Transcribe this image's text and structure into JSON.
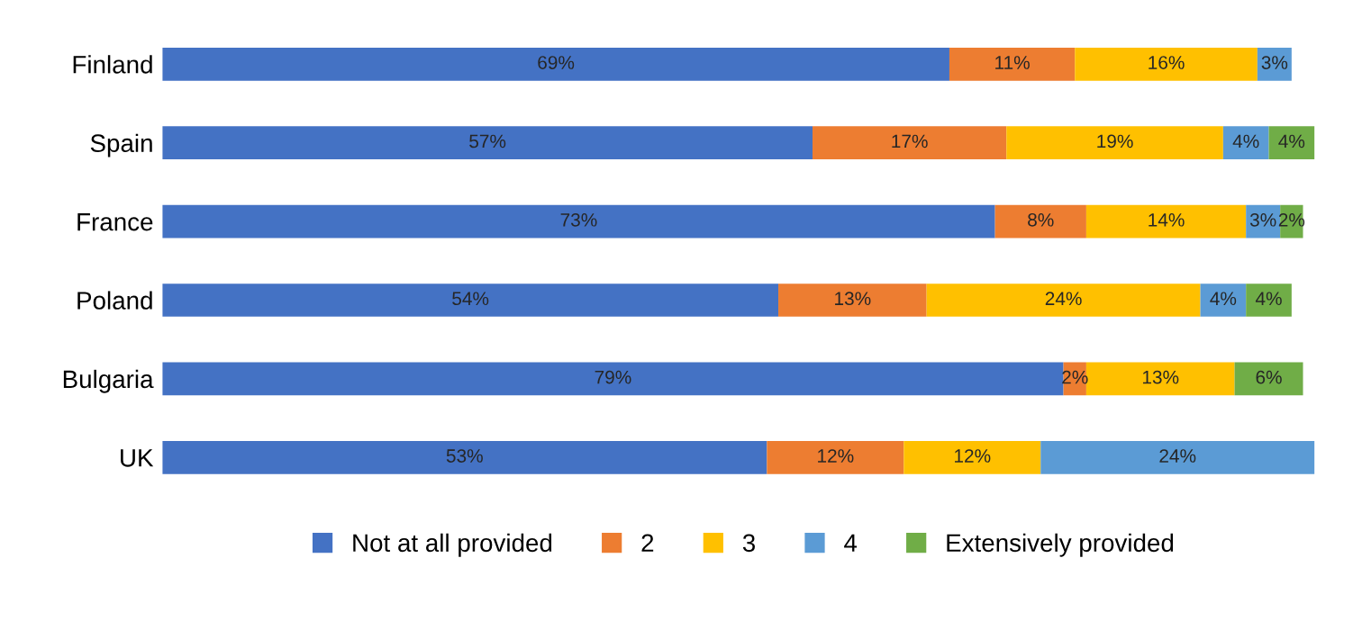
{
  "chart_data": {
    "type": "bar",
    "orientation": "horizontal",
    "stacked": true,
    "categories": [
      "Finland",
      "Spain",
      "France",
      "Poland",
      "Bulgaria",
      "UK"
    ],
    "series": [
      {
        "name": "Not at all provided",
        "color": "#4472c4",
        "values": [
          69,
          57,
          73,
          54,
          79,
          53
        ],
        "value_labels": [
          "69%",
          "57%",
          "73%",
          "54%",
          "79%",
          "53%"
        ]
      },
      {
        "name": "2",
        "color": "#ed7d31",
        "values": [
          11,
          17,
          8,
          13,
          2,
          12
        ],
        "value_labels": [
          "11%",
          "17%",
          "8%",
          "13%",
          "2%",
          "12%"
        ]
      },
      {
        "name": "3",
        "color": "#ffc000",
        "values": [
          16,
          19,
          14,
          24,
          13,
          12
        ],
        "value_labels": [
          "16%",
          "19%",
          "14%",
          "24%",
          "13%",
          "12%"
        ]
      },
      {
        "name": "4",
        "color": "#5b9bd5",
        "values": [
          3,
          4,
          3,
          4,
          null,
          24
        ],
        "value_labels": [
          "3%",
          "4%",
          "3%",
          "4%",
          null,
          "24%"
        ]
      },
      {
        "name": "Extensively provided",
        "color": "#70ad47",
        "values": [
          null,
          4,
          2,
          4,
          6,
          null
        ],
        "value_labels": [
          null,
          "4%",
          "2%",
          "4%",
          "6%",
          null
        ]
      }
    ],
    "legend": "bottom",
    "grid": false,
    "tick_labels": "y"
  }
}
